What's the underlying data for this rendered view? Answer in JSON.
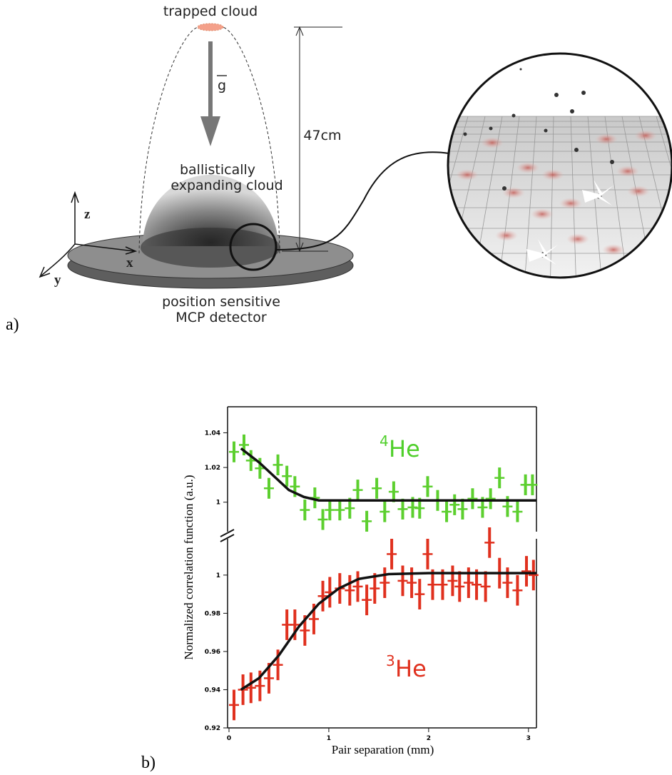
{
  "panel_a": {
    "label": "a)",
    "trapped": "trapped cloud",
    "gravity": "g",
    "height": "47cm",
    "cloud_lines": [
      "ballistically",
      "expanding cloud"
    ],
    "axes": [
      "z",
      "x",
      "y"
    ],
    "detector_lines": [
      "position sensitive",
      "MCP detector"
    ]
  },
  "panel_b": {
    "label": "b)"
  },
  "chart_data": [
    {
      "type": "errorbar",
      "xlim": [
        0,
        3.08
      ],
      "ylim": [
        0.983,
        1.055
      ],
      "yticks": [
        1,
        1.02,
        1.04
      ],
      "annotation": {
        "sup": "4",
        "text": "He",
        "color": "#4fcf2a"
      },
      "series": [
        {
          "color": "#5ccf2e",
          "x": [
            0.05,
            0.15,
            0.22,
            0.31,
            0.4,
            0.49,
            0.58,
            0.66,
            0.76,
            0.86,
            0.94,
            1.01,
            1.11,
            1.21,
            1.29,
            1.38,
            1.48,
            1.56,
            1.65,
            1.74,
            1.84,
            1.91,
            1.99,
            2.09,
            2.18,
            2.26,
            2.34,
            2.44,
            2.54,
            2.62,
            2.71,
            2.79,
            2.89,
            2.97,
            3.04
          ],
          "values": [
            1.029,
            1.033,
            1.024,
            1.0195,
            1.008,
            1.0215,
            1.015,
            1.009,
            0.9955,
            1.0025,
            0.99,
            0.9955,
            0.9955,
            0.9965,
            1.007,
            0.989,
            1.008,
            0.9945,
            1.006,
            0.996,
            0.997,
            0.9965,
            1.009,
            1.001,
            0.9945,
            0.9985,
            0.996,
            1.002,
            0.997,
            1.002,
            1.014,
            0.9975,
            0.9945,
            1.01,
            1.01
          ],
          "errors": [
            0.006,
            0.006,
            0.006,
            0.006,
            0.006,
            0.006,
            0.006,
            0.006,
            0.006,
            0.006,
            0.006,
            0.006,
            0.006,
            0.006,
            0.006,
            0.006,
            0.006,
            0.006,
            0.006,
            0.006,
            0.006,
            0.006,
            0.006,
            0.006,
            0.006,
            0.006,
            0.006,
            0.006,
            0.006,
            0.006,
            0.006,
            0.006,
            0.006,
            0.006,
            0.006
          ]
        },
        {
          "color": "#111111",
          "x": [
            0.12,
            0.3,
            0.45,
            0.6,
            0.75,
            0.9,
            1.2,
            2,
            3.08
          ],
          "values": [
            1.031,
            1.023,
            1.015,
            1.007,
            1.003,
            1.001,
            1.001,
            1.001,
            1.001
          ]
        }
      ]
    },
    {
      "type": "errorbar",
      "xlim": [
        0,
        3.08
      ],
      "ylim": [
        0.92,
        1.019
      ],
      "yticks": [
        0.92,
        0.94,
        0.96,
        0.98,
        1
      ],
      "xticks": [
        0,
        1,
        2,
        3
      ],
      "xlabel": "Pair separation (mm)",
      "ylabel": "Normalized correlation function (a.u.)",
      "annotation": {
        "sup": "3",
        "text": "He",
        "color": "#e0301e"
      },
      "series": [
        {
          "color": "#e0301e",
          "x": [
            0.05,
            0.14,
            0.22,
            0.31,
            0.4,
            0.49,
            0.58,
            0.66,
            0.76,
            0.85,
            0.94,
            1.01,
            1.11,
            1.21,
            1.29,
            1.38,
            1.46,
            1.56,
            1.63,
            1.74,
            1.83,
            1.91,
            1.99,
            2.04,
            2.14,
            2.24,
            2.31,
            2.4,
            2.48,
            2.57,
            2.61,
            2.71,
            2.79,
            2.89,
            2.98,
            3.05
          ],
          "values": [
            0.932,
            0.94,
            0.941,
            0.942,
            0.946,
            0.953,
            0.974,
            0.974,
            0.971,
            0.977,
            0.989,
            0.991,
            0.993,
            0.992,
            0.994,
            0.987,
            0.993,
            0.996,
            1.011,
            0.997,
            0.996,
            0.99,
            1.011,
            0.995,
            0.995,
            0.997,
            0.994,
            0.996,
            0.995,
            0.994,
            1.017,
            1.001,
            0.996,
            0.992,
            1.002,
            1
          ],
          "errors": [
            0.008,
            0.008,
            0.008,
            0.008,
            0.008,
            0.008,
            0.008,
            0.008,
            0.008,
            0.008,
            0.008,
            0.008,
            0.008,
            0.008,
            0.008,
            0.008,
            0.008,
            0.008,
            0.008,
            0.008,
            0.008,
            0.008,
            0.008,
            0.008,
            0.008,
            0.008,
            0.008,
            0.008,
            0.008,
            0.008,
            0.008,
            0.008,
            0.008,
            0.008,
            0.008,
            0.008
          ]
        },
        {
          "color": "#111111",
          "x": [
            0.12,
            0.3,
            0.5,
            0.7,
            0.9,
            1.1,
            1.3,
            1.6,
            2,
            3.08
          ],
          "values": [
            0.94,
            0.946,
            0.958,
            0.973,
            0.985,
            0.993,
            0.998,
            1.0005,
            1.001,
            1.001
          ]
        }
      ]
    }
  ]
}
